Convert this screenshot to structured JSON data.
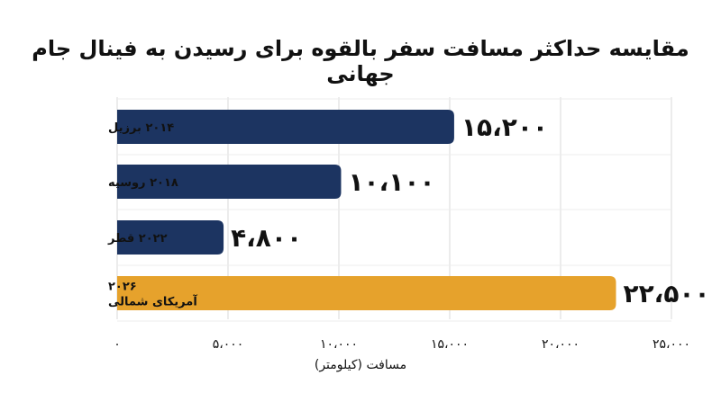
{
  "chart_data": {
    "type": "bar",
    "orientation": "horizontal",
    "title": "مقایسه حداکثر مسافت سفر بالقوه برای رسیدن به فینال جام جهانی",
    "xlabel": "مسافت (کیلومتر)",
    "ylabel": "",
    "categories": [
      [
        "۲۰۱۴ برزیل"
      ],
      [
        "۲۰۱۸ روسیه"
      ],
      [
        "۲۰۲۲ قطر"
      ],
      [
        "۲۰۲۶",
        "آمریکای شمالی"
      ]
    ],
    "values": [
      15200,
      10100,
      4800,
      22500
    ],
    "value_labels": [
      "۱۵،۲۰۰",
      "۱۰،۱۰۰",
      "۴،۸۰۰",
      "۲۲،۵۰۰"
    ],
    "xlim": [
      0,
      25000
    ],
    "x_ticks": [
      0,
      5000,
      10000,
      15000,
      20000,
      25000
    ],
    "x_tick_labels": [
      "۰",
      "۵،۰۰۰",
      "۱۰،۰۰۰",
      "۱۵،۰۰۰",
      "۲۰،۰۰۰",
      "۲۵،۰۰۰"
    ],
    "grid": true,
    "bar_colors": [
      "#1c3461",
      "#1c3461",
      "#1c3461",
      "#e6a22c"
    ],
    "grid_color": "#d9d9d9",
    "text_color": "#111111"
  }
}
